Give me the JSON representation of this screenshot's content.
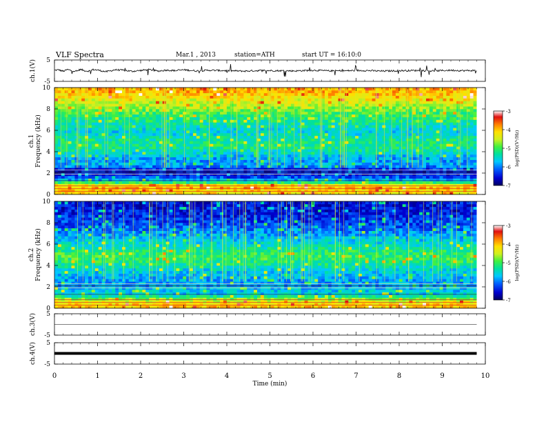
{
  "header": {
    "title": "VLF Spectra",
    "date": "Mar.1 , 2013",
    "station": "station=ATH",
    "start": "start UT = 16:10:0"
  },
  "colorbar": {
    "label": "log(PSD)(V²/Hz)",
    "ticks": [
      "-3",
      "-4",
      "-5",
      "-6",
      "-7"
    ],
    "colors": [
      "#000060",
      "#0000d0",
      "#0060ff",
      "#00c8ff",
      "#00e0a0",
      "#40f040",
      "#d0f020",
      "#ffe000",
      "#ff8000",
      "#e01010",
      "#ffffff"
    ]
  },
  "chart_data": [
    {
      "type": "line",
      "panel": "ch1-waveform",
      "ylabel": "ch.1(V)",
      "yticks": [
        "5",
        "-5"
      ],
      "ylim": [
        -5,
        5
      ],
      "x": [
        0,
        0.1,
        0.2,
        0.3,
        0.4,
        0.5,
        0.6,
        0.7,
        0.8,
        0.9,
        1.0,
        1.2,
        1.4,
        1.6,
        1.8,
        2.0,
        2.2,
        2.4,
        2.6,
        2.8,
        3.0,
        3.3,
        3.6,
        4.0,
        4.4,
        4.8,
        5.2,
        5.6,
        6.0,
        6.4,
        6.8,
        7.2,
        7.6,
        8.0,
        8.4,
        8.8,
        9.2,
        9.5,
        9.8
      ],
      "y": [
        0.2,
        0.4,
        -0.3,
        0.5,
        0.1,
        -0.4,
        0.6,
        0.0,
        -0.2,
        0.5,
        0.3,
        -0.5,
        0.4,
        0.2,
        -0.3,
        0.1,
        0.5,
        -0.2,
        0.3,
        0.0,
        0.4,
        -0.1,
        0.2,
        0.0,
        -0.2,
        0.1,
        0.0,
        -0.1,
        0.2,
        -0.1,
        0.0,
        0.1,
        -0.2,
        0.0,
        0.1,
        -0.1,
        0.2,
        0.0,
        0.1
      ]
    },
    {
      "type": "heatmap",
      "panel": "ch1-spectrogram",
      "ylabel_channel": "ch.1",
      "ylabel": "Frequency (kHz)",
      "yticks": [
        "0",
        "2",
        "4",
        "6",
        "8",
        "10"
      ],
      "ylim": [
        0,
        10
      ],
      "xlim": [
        0,
        9.8
      ],
      "freq_khz": [
        0.25,
        0.75,
        1.25,
        1.75,
        2.25,
        2.75,
        3.25,
        3.75,
        4.25,
        4.75,
        5.25,
        5.75,
        6.25,
        6.75,
        7.25,
        7.75,
        8.25,
        8.75,
        9.25,
        9.75
      ],
      "log_psd": [
        -4.2,
        -3.8,
        -5.6,
        -6.4,
        -6.6,
        -5.8,
        -5.9,
        -5.6,
        -5.3,
        -5.2,
        -5.3,
        -5.6,
        -5.5,
        -5.3,
        -5.1,
        -4.9,
        -4.6,
        -4.4,
        -4.1,
        -3.9
      ]
    },
    {
      "type": "heatmap",
      "panel": "ch2-spectrogram",
      "ylabel_channel": "ch.2",
      "ylabel": "Frequency (kHz)",
      "yticks": [
        "0",
        "2",
        "4",
        "6",
        "8",
        "10"
      ],
      "ylim": [
        0,
        10
      ],
      "xlim": [
        0,
        9.8
      ],
      "freq_khz": [
        0.25,
        0.75,
        1.25,
        1.75,
        2.25,
        2.75,
        3.25,
        3.75,
        4.25,
        4.75,
        5.25,
        5.75,
        6.25,
        6.75,
        7.25,
        7.75,
        8.25,
        8.75,
        9.25,
        9.75
      ],
      "log_psd": [
        -4.0,
        -4.5,
        -5.6,
        -5.7,
        -5.9,
        -5.8,
        -5.7,
        -5.5,
        -5.2,
        -5.0,
        -5.1,
        -5.4,
        -5.6,
        -5.8,
        -6.0,
        -6.2,
        -6.3,
        -6.4,
        -6.5,
        -6.5
      ]
    },
    {
      "type": "line",
      "panel": "ch3-waveform",
      "ylabel": "ch.3(V)",
      "yticks": [
        "5",
        "-5"
      ],
      "ylim": [
        -5,
        5
      ],
      "x": [
        0,
        9.8
      ],
      "y": [
        0,
        0
      ]
    },
    {
      "type": "line",
      "panel": "ch4-waveform",
      "ylabel": "ch.4(V)",
      "yticks": [
        "5",
        "-5"
      ],
      "ylim": [
        -5,
        5
      ],
      "x": [
        0,
        9.8
      ],
      "y": [
        0,
        0
      ]
    }
  ],
  "xaxis": {
    "label": "Time (min)",
    "ticks": [
      "0",
      "1",
      "2",
      "3",
      "4",
      "5",
      "6",
      "7",
      "8",
      "9",
      "10"
    ],
    "xlim": [
      0,
      10
    ]
  }
}
